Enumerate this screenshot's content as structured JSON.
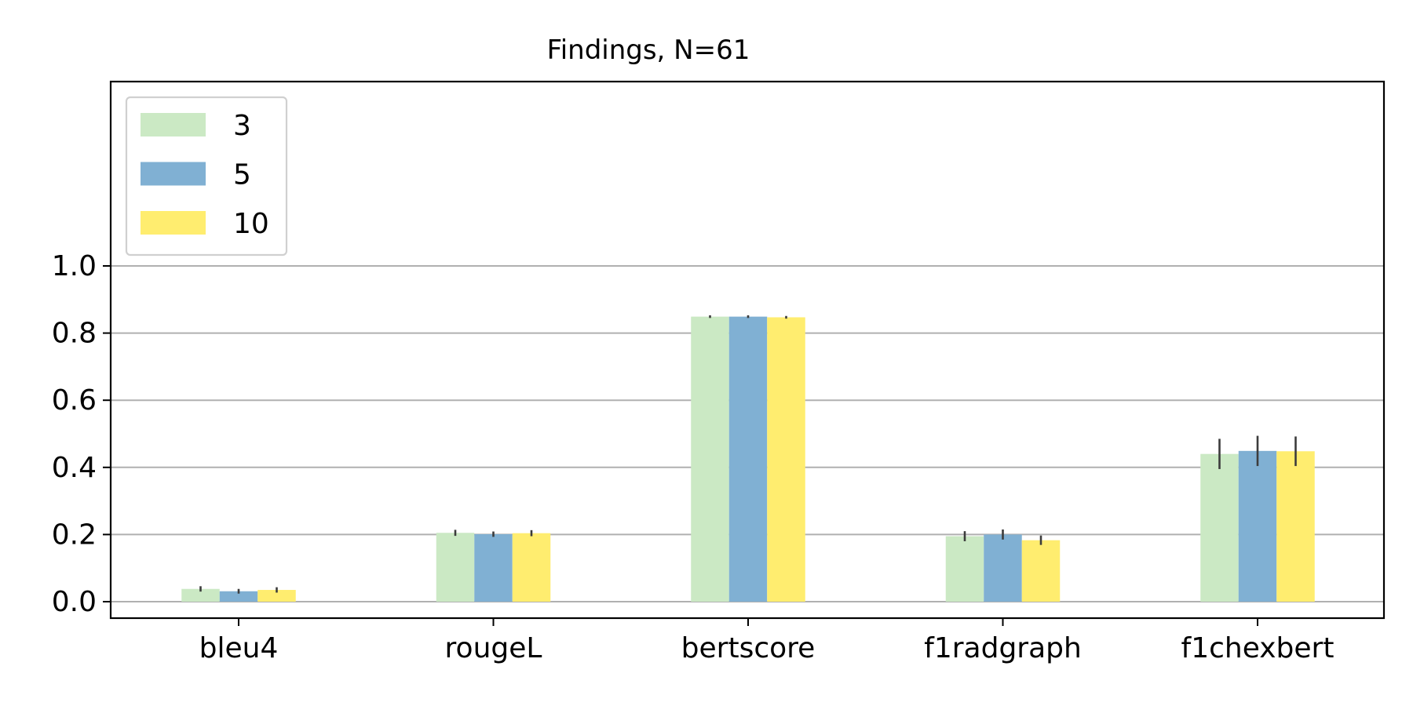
{
  "chart_data": {
    "type": "bar",
    "title": "Findings, N=61",
    "xlabel": "",
    "ylabel": "",
    "categories": [
      "bleu4",
      "rougeL",
      "bertscore",
      "f1radgraph",
      "f1chexbert"
    ],
    "series": [
      {
        "name": "3",
        "color": "#cbe9c4",
        "values": [
          0.038,
          0.205,
          0.849,
          0.195,
          0.44
        ],
        "errors": [
          0.008,
          0.009,
          0.004,
          0.015,
          0.045
        ]
      },
      {
        "name": "5",
        "color": "#80b0d3",
        "values": [
          0.031,
          0.201,
          0.849,
          0.2,
          0.449
        ],
        "errors": [
          0.007,
          0.008,
          0.004,
          0.015,
          0.045
        ]
      },
      {
        "name": "10",
        "color": "#ffed6f",
        "values": [
          0.035,
          0.204,
          0.847,
          0.183,
          0.448
        ],
        "errors": [
          0.008,
          0.009,
          0.004,
          0.014,
          0.044
        ]
      }
    ],
    "ylim": [
      -0.05,
      1.55
    ],
    "yticks": [
      "0.0",
      "0.2",
      "0.4",
      "0.6",
      "0.8",
      "1.0"
    ],
    "grid": "horizontal",
    "legend_position": "top-left"
  }
}
